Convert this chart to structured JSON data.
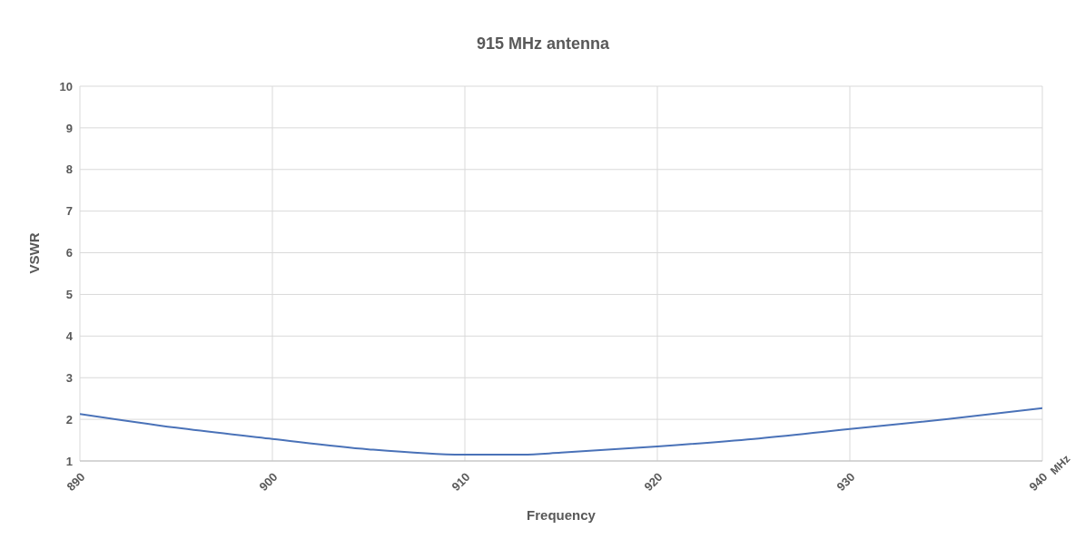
{
  "chart_data": {
    "type": "line",
    "title": "915 MHz antenna",
    "xlabel": "Frequency",
    "ylabel": "VSWR",
    "annotations": [
      "MHz"
    ],
    "x": [
      890,
      895,
      900,
      905,
      910,
      913,
      915,
      920,
      925,
      930,
      935,
      940
    ],
    "series": [
      {
        "color": "#4a72b8",
        "values": [
          2.13,
          1.8,
          1.53,
          1.28,
          1.15,
          1.15,
          1.2,
          1.35,
          1.53,
          1.77,
          2.0,
          2.27
        ]
      }
    ],
    "xlim": [
      890,
      940
    ],
    "xticks": [
      890,
      900,
      910,
      920,
      930,
      940
    ],
    "ylim": [
      1,
      10
    ],
    "yticks": [
      1,
      2,
      3,
      4,
      5,
      6,
      7,
      8,
      9,
      10
    ],
    "grid": true,
    "marker": "none",
    "line_style": "solid"
  }
}
